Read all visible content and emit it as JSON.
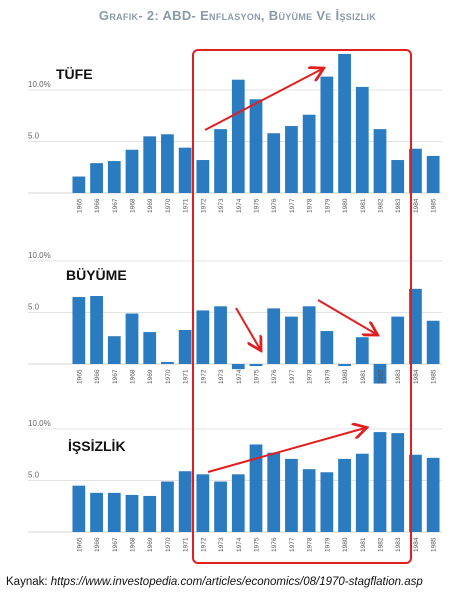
{
  "title": "Grafik- 2: ABD- Enflasyon, Büyüme Ve İşsizlik",
  "source": {
    "label": "Kaynak:",
    "url": "https://www.investopedia.com/articles/economics/08/1970-stagflation.asp"
  },
  "chart_data": [
    {
      "type": "bar",
      "title": "TÜFE",
      "categories": [
        "1965",
        "1966",
        "1967",
        "1968",
        "1969",
        "1970",
        "1971",
        "1972",
        "1973",
        "1974",
        "1975",
        "1976",
        "1977",
        "1978",
        "1979",
        "1980",
        "1981",
        "1982",
        "1983",
        "1984",
        "1985"
      ],
      "values": [
        1.6,
        2.9,
        3.1,
        4.2,
        5.5,
        5.7,
        4.4,
        3.2,
        6.2,
        11.0,
        9.1,
        5.8,
        6.5,
        7.6,
        11.3,
        13.5,
        10.3,
        6.2,
        3.2,
        4.3,
        3.6
      ],
      "ylim": [
        0,
        14
      ],
      "yticks": [
        {
          "value": 5,
          "label": "5.0"
        },
        {
          "value": 10,
          "label": "10.0%"
        }
      ],
      "grid": true,
      "color": "#2a7bc0"
    },
    {
      "type": "bar",
      "title": "BÜYÜME",
      "categories": [
        "1965",
        "1966",
        "1967",
        "1968",
        "1969",
        "1970",
        "1971",
        "1972",
        "1973",
        "1974",
        "1975",
        "1976",
        "1977",
        "1978",
        "1979",
        "1980",
        "1981",
        "1982",
        "1983",
        "1984",
        "1985"
      ],
      "values": [
        6.5,
        6.6,
        2.7,
        4.9,
        3.1,
        0.2,
        3.3,
        5.2,
        5.6,
        -0.5,
        -0.2,
        5.4,
        4.6,
        5.6,
        3.2,
        -0.2,
        2.6,
        -1.9,
        4.6,
        7.3,
        4.2
      ],
      "ylim": [
        -2.5,
        11
      ],
      "yticks": [
        {
          "value": 5,
          "label": "5.0"
        },
        {
          "value": 10,
          "label": "10.0%"
        }
      ],
      "grid": true,
      "color": "#2a7bc0"
    },
    {
      "type": "bar",
      "title": "İŞSİZLİK",
      "categories": [
        "1965",
        "1966",
        "1967",
        "1968",
        "1969",
        "1970",
        "1971",
        "1972",
        "1973",
        "1974",
        "1975",
        "1976",
        "1977",
        "1978",
        "1979",
        "1980",
        "1981",
        "1982",
        "1983",
        "1984",
        "1985"
      ],
      "values": [
        4.5,
        3.8,
        3.8,
        3.6,
        3.5,
        4.9,
        5.9,
        5.6,
        4.9,
        5.6,
        8.5,
        7.7,
        7.1,
        6.1,
        5.8,
        7.1,
        7.6,
        9.7,
        9.6,
        7.5,
        7.2
      ],
      "ylim": [
        0,
        11
      ],
      "yticks": [
        {
          "value": 5,
          "label": "5.0"
        },
        {
          "value": 10,
          "label": "10.0%"
        }
      ],
      "grid": true,
      "color": "#2a7bc0"
    }
  ],
  "annotations": {
    "box_color": "#e02020",
    "arrow_color": "#e02020",
    "highlighted_range": [
      "1972",
      "1983"
    ]
  }
}
